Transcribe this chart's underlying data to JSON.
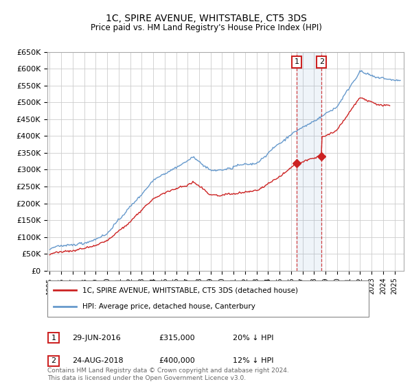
{
  "title": "1C, SPIRE AVENUE, WHITSTABLE, CT5 3DS",
  "subtitle": "Price paid vs. HM Land Registry's House Price Index (HPI)",
  "ylim": [
    0,
    650000
  ],
  "yticks": [
    0,
    50000,
    100000,
    150000,
    200000,
    250000,
    300000,
    350000,
    400000,
    450000,
    500000,
    550000,
    600000,
    650000
  ],
  "ytick_labels": [
    "£0",
    "£50K",
    "£100K",
    "£150K",
    "£200K",
    "£250K",
    "£300K",
    "£350K",
    "£400K",
    "£450K",
    "£500K",
    "£550K",
    "£600K",
    "£650K"
  ],
  "xticks": [
    1995,
    1996,
    1997,
    1998,
    1999,
    2000,
    2001,
    2002,
    2003,
    2004,
    2005,
    2006,
    2007,
    2008,
    2009,
    2010,
    2011,
    2012,
    2013,
    2014,
    2015,
    2016,
    2017,
    2018,
    2019,
    2020,
    2021,
    2022,
    2023,
    2024,
    2025
  ],
  "hpi_color": "#6699cc",
  "price_color": "#cc2222",
  "transaction1_x": 2016.49,
  "transaction1_price": 315000,
  "transaction1_date": "29-JUN-2016",
  "transaction1_hpi_pct": "20% ↓ HPI",
  "transaction2_x": 2018.65,
  "transaction2_price": 400000,
  "transaction2_date": "24-AUG-2018",
  "transaction2_hpi_pct": "12% ↓ HPI",
  "legend_label1": "1C, SPIRE AVENUE, WHITSTABLE, CT5 3DS (detached house)",
  "legend_label2": "HPI: Average price, detached house, Canterbury",
  "footer": "Contains HM Land Registry data © Crown copyright and database right 2024.\nThis data is licensed under the Open Government Licence v3.0.",
  "background_color": "#ffffff",
  "grid_color": "#cccccc"
}
